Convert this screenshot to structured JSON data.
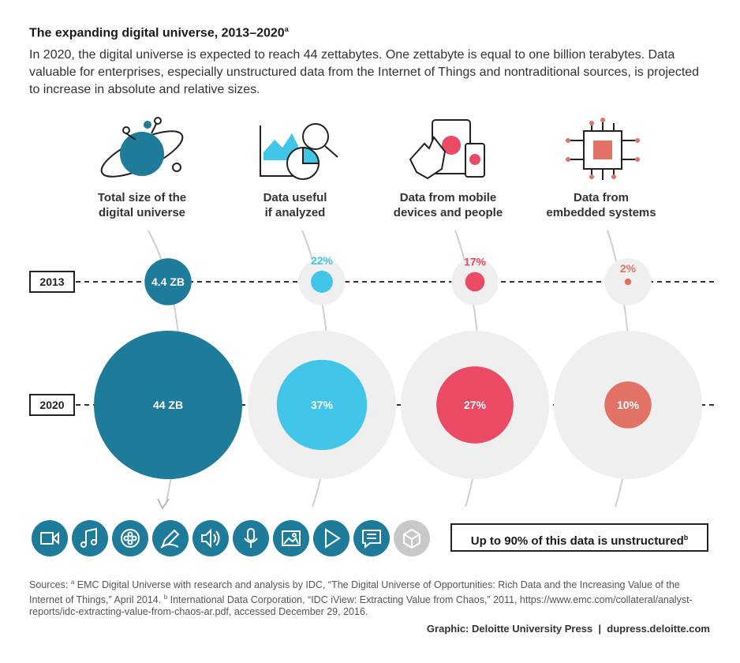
{
  "title": "The expanding digital universe, 2013–2020",
  "title_sup": "a",
  "subtitle": "In 2020, the digital universe is expected to reach 44 zettabytes. One zettabyte is equal to one billion terabytes. Data valuable for enterprises, especially unstructured data from the Internet of Things and nontraditional sources, is projected to increase in absolute and relative sizes.",
  "categories": [
    {
      "line1": "Total size of the",
      "line2": "digital universe",
      "icon": "planet-icon"
    },
    {
      "line1": "Data useful",
      "line2": "if analyzed",
      "icon": "analytics-icon"
    },
    {
      "line1": "Data from mobile",
      "line2": "devices and people",
      "icon": "mobile-devices-icon"
    },
    {
      "line1": "Data from",
      "line2": "embedded systems",
      "icon": "chip-icon"
    }
  ],
  "years": [
    "2013",
    "2020"
  ],
  "colors": {
    "teal": "#1f7b9a",
    "sky": "#41c5e8",
    "pink": "#ea4a63",
    "salmon": "#e27266",
    "ring": "#efefef",
    "grey_icon": "#c8c8c8"
  },
  "chart_data": {
    "type": "bubble",
    "categories": [
      "Total size of the digital universe",
      "Data useful if analyzed",
      "Data from mobile devices and people",
      "Data from embedded systems"
    ],
    "series": [
      {
        "name": "2013",
        "values": [
          4.4,
          22,
          17,
          2
        ],
        "labels": [
          "4.4 ZB",
          "22%",
          "17%",
          "2%"
        ]
      },
      {
        "name": "2020",
        "values": [
          44,
          37,
          27,
          10
        ],
        "labels": [
          "44 ZB",
          "37%",
          "27%",
          "10%"
        ]
      }
    ],
    "units": [
      "ZB",
      "%",
      "%",
      "%"
    ]
  },
  "media_icons": [
    "video-icon",
    "music-icon",
    "film-reel-icon",
    "pen-icon",
    "speaker-icon",
    "microphone-icon",
    "image-icon",
    "play-icon",
    "chat-icon",
    "cube-icon"
  ],
  "callout": "Up to 90% of this data is unstructured",
  "callout_sup": "b",
  "sources": {
    "prefix": "Sources: ",
    "sup_a": "a",
    "text_a": " EMC Digital Universe with research and analysis by IDC, “The Digital Universe of Opportunities: Rich Data and the Increasing Value of the Internet of Things,” April 2014. ",
    "sup_b": "b",
    "text_b": " International Data Corporation, “IDC iView: Extracting Value from Chaos,” 2011, https://www.emc.com/collateral/analyst-reports/idc-extracting-value-from-chaos-ar.pdf, accessed December 29, 2016."
  },
  "credit": "Graphic: Deloitte University Press  |  dupress.deloitte.com"
}
